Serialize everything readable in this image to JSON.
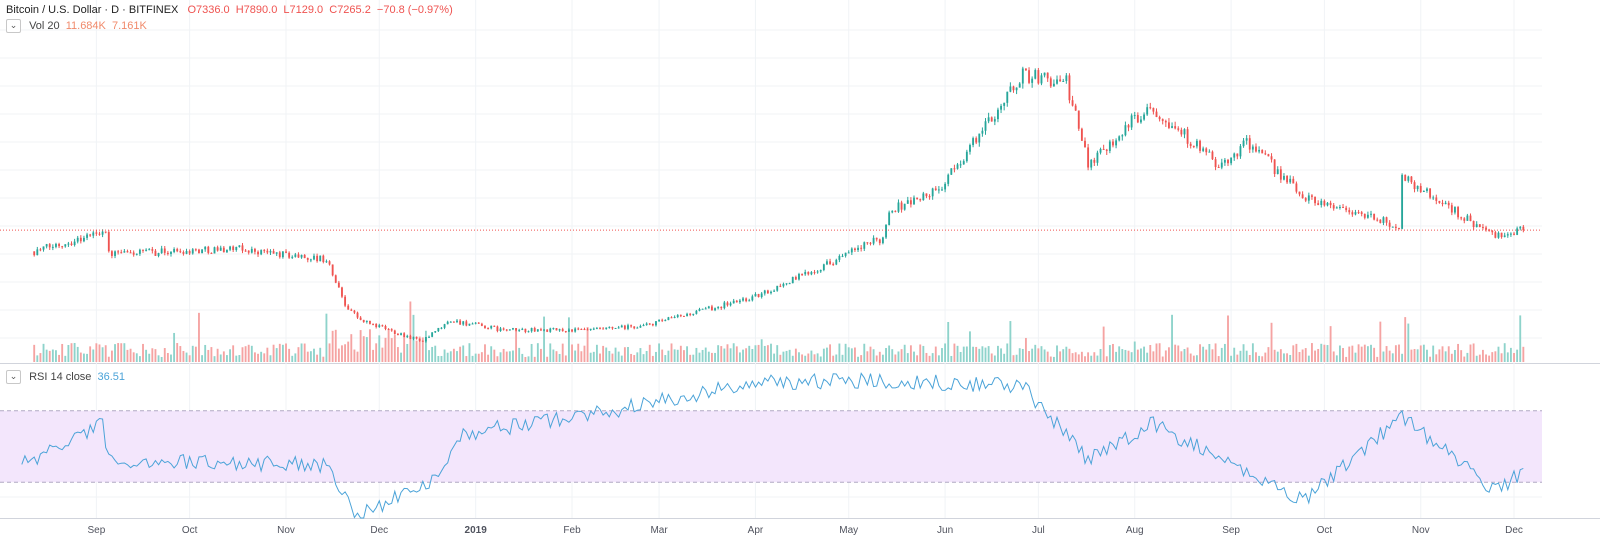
{
  "header": {
    "symbol": "Bitcoin / U.S. Dollar · D · BITFINEX",
    "ohlc": {
      "open_label": "O",
      "open": "7336.0",
      "high_label": "H",
      "high": "7890.0",
      "low_label": "L",
      "low": "7129.0",
      "close_label": "C",
      "close": "7265.2",
      "change": "−70.8 (−0.97%)"
    }
  },
  "volume_legend": {
    "name": "Vol 20",
    "value1": "11.684K",
    "value2": "7.161K"
  },
  "rsi_legend": {
    "name": "RSI 14 close",
    "value": "36.51"
  },
  "colors": {
    "up": "#26a69a",
    "down": "#ef5350",
    "rsi_line": "#4ba3d8",
    "rsi_band": "#f3e6fc"
  },
  "icons": {
    "collapse": "chevron-down-icon"
  },
  "chart_data": [
    {
      "type": "candlestick",
      "title": "",
      "x_tick_labels": [
        "Sep",
        "Oct",
        "Nov",
        "Dec",
        "2019",
        "Feb",
        "Mar",
        "Apr",
        "May",
        "Jun",
        "Jul",
        "Aug",
        "Sep",
        "Oct",
        "Nov",
        "Dec"
      ],
      "last_price": 7265.2,
      "ylim": [
        2500,
        14500
      ],
      "grid": true,
      "legend": "top-left",
      "key_closes": [
        {
          "date": "2018-08-12",
          "close": 6500
        },
        {
          "date": "2018-08-28",
          "close": 7000
        },
        {
          "date": "2018-09-04",
          "close": 7300
        },
        {
          "date": "2018-09-05",
          "close": 6400
        },
        {
          "date": "2018-10-15",
          "close": 6600
        },
        {
          "date": "2018-11-14",
          "close": 6200
        },
        {
          "date": "2018-11-20",
          "close": 4600
        },
        {
          "date": "2018-11-25",
          "close": 4000
        },
        {
          "date": "2018-12-15",
          "close": 3250
        },
        {
          "date": "2018-12-24",
          "close": 4000
        },
        {
          "date": "2019-01-10",
          "close": 3650
        },
        {
          "date": "2019-02-08",
          "close": 3650
        },
        {
          "date": "2019-02-24",
          "close": 3800
        },
        {
          "date": "2019-04-02",
          "close": 4900
        },
        {
          "date": "2019-05-12",
          "close": 7000
        },
        {
          "date": "2019-05-14",
          "close": 8000
        },
        {
          "date": "2019-05-30",
          "close": 8700
        },
        {
          "date": "2019-06-26",
          "close": 12900
        },
        {
          "date": "2019-07-10",
          "close": 12600
        },
        {
          "date": "2019-07-17",
          "close": 9700
        },
        {
          "date": "2019-08-06",
          "close": 11800
        },
        {
          "date": "2019-08-29",
          "close": 9500
        },
        {
          "date": "2019-09-06",
          "close": 10500
        },
        {
          "date": "2019-09-24",
          "close": 8500
        },
        {
          "date": "2019-10-25",
          "close": 7400
        },
        {
          "date": "2019-10-26",
          "close": 9200
        },
        {
          "date": "2019-11-25",
          "close": 7000
        },
        {
          "date": "2019-12-04",
          "close": 7265
        }
      ]
    },
    {
      "type": "bar",
      "title": "",
      "series_name": "Vol 20",
      "values_note_k": [
        11.684,
        7.161
      ]
    },
    {
      "type": "line",
      "title": "",
      "series_name": "RSI 14 close",
      "last_value": 36.51,
      "band": [
        30,
        70
      ],
      "ylim": [
        10,
        95
      ],
      "key_values": [
        {
          "date": "2018-08-08",
          "value": 40
        },
        {
          "date": "2018-09-03",
          "value": 62
        },
        {
          "date": "2018-09-05",
          "value": 42
        },
        {
          "date": "2018-11-14",
          "value": 40
        },
        {
          "date": "2018-11-24",
          "value": 12
        },
        {
          "date": "2018-12-16",
          "value": 28
        },
        {
          "date": "2018-12-28",
          "value": 57
        },
        {
          "date": "2019-02-20",
          "value": 72
        },
        {
          "date": "2019-04-02",
          "value": 86
        },
        {
          "date": "2019-05-14",
          "value": 87
        },
        {
          "date": "2019-06-26",
          "value": 84
        },
        {
          "date": "2019-07-17",
          "value": 42
        },
        {
          "date": "2019-08-06",
          "value": 63
        },
        {
          "date": "2019-09-24",
          "value": 20
        },
        {
          "date": "2019-10-26",
          "value": 67
        },
        {
          "date": "2019-11-25",
          "value": 25
        },
        {
          "date": "2019-12-04",
          "value": 36.5
        }
      ]
    }
  ]
}
